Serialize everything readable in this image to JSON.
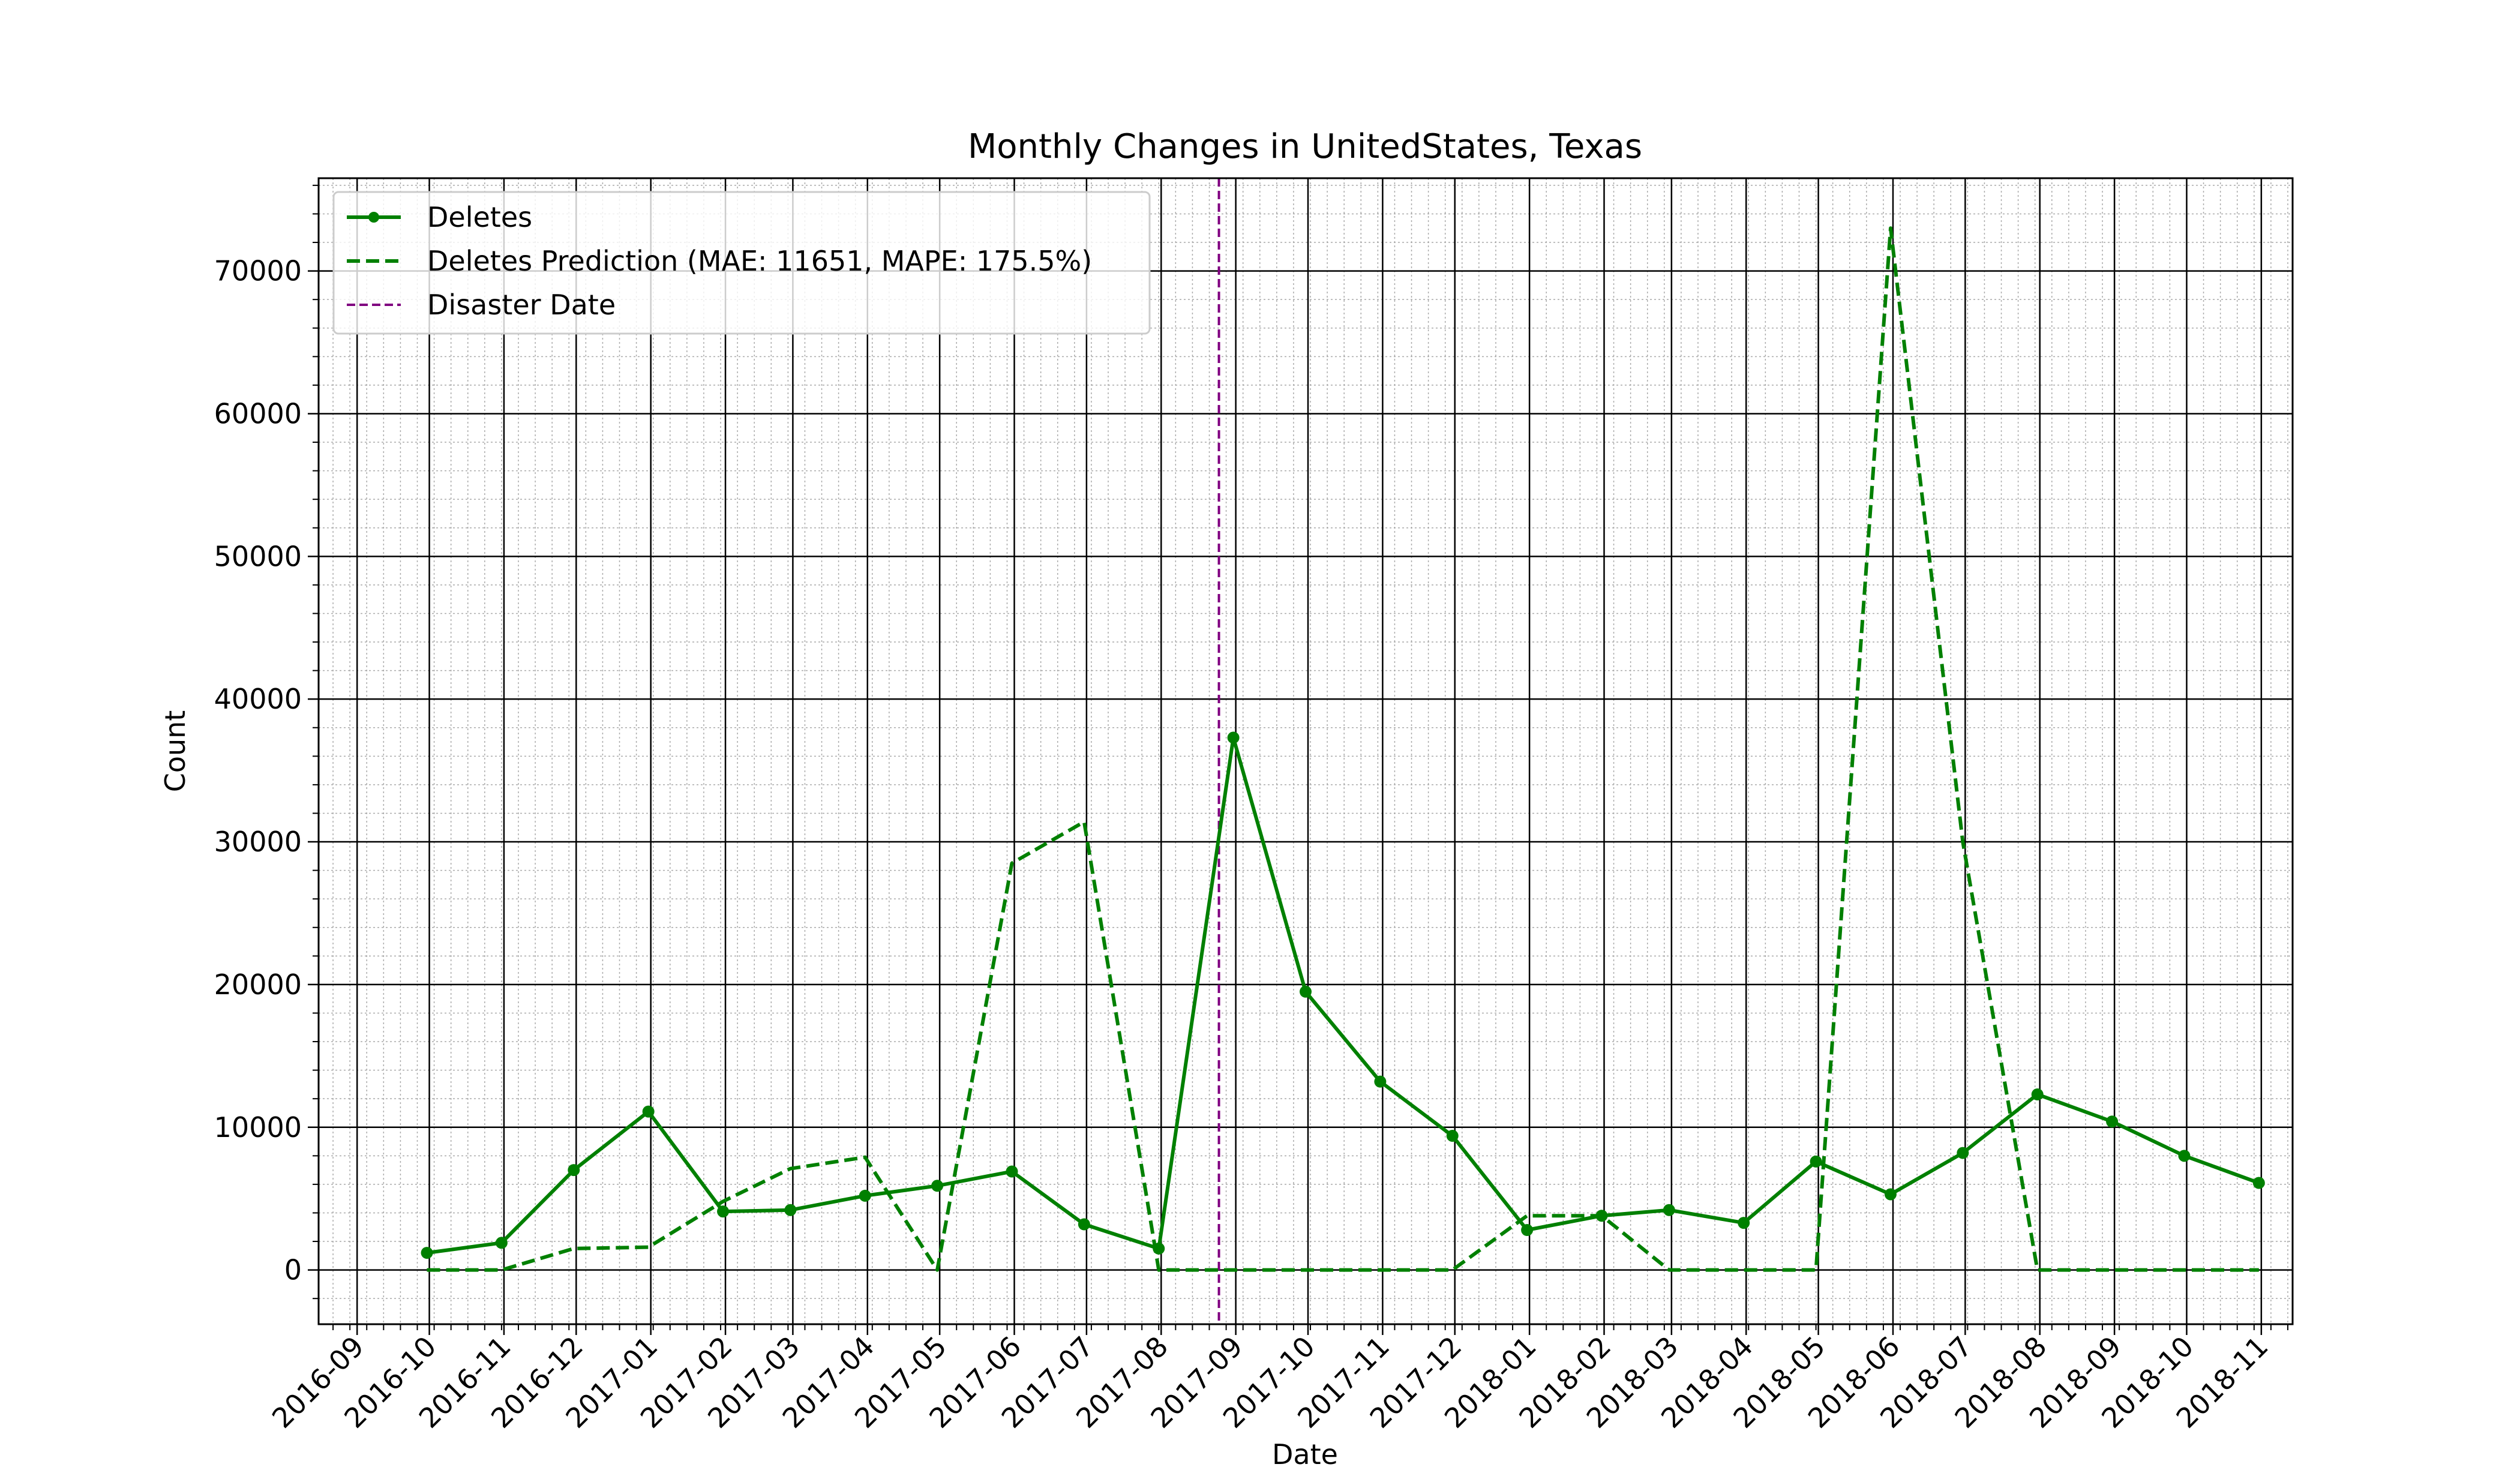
{
  "chart_data": {
    "type": "line",
    "title": "Monthly Changes in UnitedStates, Texas",
    "xlabel": "Date",
    "ylabel": "Count",
    "ylim": [
      -3800,
      76500
    ],
    "xlim": [
      "2016-08-16",
      "2018-11-14"
    ],
    "y_ticks": [
      0,
      10000,
      20000,
      30000,
      40000,
      50000,
      60000,
      70000
    ],
    "x_tick_labels": [
      "2016-09",
      "2016-10",
      "2016-11",
      "2016-12",
      "2017-01",
      "2017-02",
      "2017-03",
      "2017-04",
      "2017-05",
      "2017-06",
      "2017-07",
      "2017-08",
      "2017-09",
      "2017-10",
      "2017-11",
      "2017-12",
      "2018-01",
      "2018-02",
      "2018-03",
      "2018-04",
      "2018-05",
      "2018-06",
      "2018-07",
      "2018-08",
      "2018-09",
      "2018-10",
      "2018-11"
    ],
    "grid": true,
    "minor_grid": true,
    "legend_position": "top-left",
    "colors": {
      "deletes": "#008000",
      "prediction": "#008000",
      "disaster": "#800080"
    },
    "x": [
      "2016-09-30",
      "2016-10-31",
      "2016-11-30",
      "2016-12-31",
      "2017-01-31",
      "2017-02-28",
      "2017-03-31",
      "2017-04-30",
      "2017-05-31",
      "2017-06-30",
      "2017-07-31",
      "2017-08-31",
      "2017-09-30",
      "2017-10-31",
      "2017-11-30",
      "2017-12-31",
      "2018-01-31",
      "2018-02-28",
      "2018-03-31",
      "2018-04-30",
      "2018-05-31",
      "2018-06-30",
      "2018-07-31",
      "2018-08-31",
      "2018-09-30",
      "2018-10-31"
    ],
    "series": [
      {
        "name": "Deletes",
        "style": "solid-marker",
        "values": [
          1200,
          1900,
          7000,
          11100,
          4100,
          4200,
          5200,
          5900,
          6900,
          3200,
          1500,
          37300,
          19500,
          13200,
          9400,
          2800,
          3800,
          4200,
          3300,
          7600,
          5300,
          8200,
          12300,
          10400,
          8000,
          6100
        ]
      },
      {
        "name": "Deletes Prediction (MAE: 11651, MAPE: 175.5%)",
        "style": "dashed",
        "values": [
          0,
          0,
          1500,
          1600,
          4800,
          7100,
          7900,
          0,
          28500,
          31400,
          0,
          0,
          0,
          0,
          0,
          3800,
          3800,
          0,
          0,
          0,
          73000,
          30000,
          0,
          0,
          0,
          0
        ]
      }
    ],
    "vertical_line": {
      "name": "Disaster Date",
      "x": "2017-08-25",
      "style": "dashed"
    }
  }
}
